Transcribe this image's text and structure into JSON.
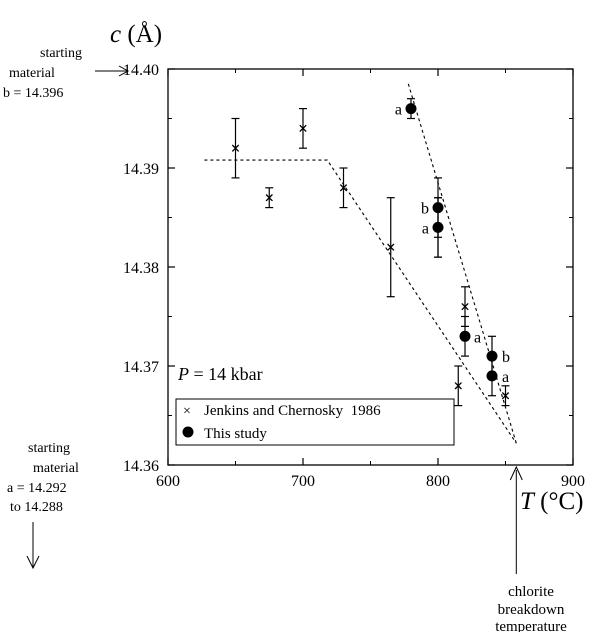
{
  "chart_data": {
    "type": "scatter",
    "xlabel": "T (°C)",
    "ylabel": "c (Å)",
    "xlim": [
      600,
      900
    ],
    "ylim": [
      14.36,
      14.4
    ],
    "x_ticks": [
      600,
      700,
      800,
      900
    ],
    "x_tick_labels": [
      "600",
      "700",
      "800",
      "900"
    ],
    "y_ticks": [
      14.36,
      14.37,
      14.38,
      14.39,
      14.4
    ],
    "y_tick_labels": [
      "14.36",
      "14.37",
      "14.38",
      "14.39",
      "14.40"
    ],
    "grid": false,
    "legend_position": "bottom-left",
    "series": [
      {
        "name": "Jenkins and Chernosky  1986",
        "marker": "cross",
        "points": [
          {
            "x": 650,
            "y": 14.392,
            "yerr": 0.003
          },
          {
            "x": 675,
            "y": 14.387,
            "yerr": 0.001
          },
          {
            "x": 700,
            "y": 14.394,
            "yerr": 0.002
          },
          {
            "x": 730,
            "y": 14.388,
            "yerr": 0.002
          },
          {
            "x": 765,
            "y": 14.382,
            "yerr": 0.005
          },
          {
            "x": 800,
            "y": 14.384,
            "yerr": 0.003
          },
          {
            "x": 815,
            "y": 14.368,
            "yerr": 0.002
          },
          {
            "x": 820,
            "y": 14.376,
            "yerr": 0.002
          },
          {
            "x": 850,
            "y": 14.367,
            "yerr": 0.001
          }
        ]
      },
      {
        "name": "This study",
        "marker": "filled-circle",
        "points": [
          {
            "x": 780,
            "y": 14.396,
            "yerr": 0.001,
            "label": "a"
          },
          {
            "x": 800,
            "y": 14.386,
            "yerr": 0.003,
            "label": "b"
          },
          {
            "x": 800,
            "y": 14.384,
            "yerr": 0.003,
            "label": "a"
          },
          {
            "x": 820,
            "y": 14.373,
            "yerr": 0.002,
            "label": "a"
          },
          {
            "x": 840,
            "y": 14.371,
            "yerr": 0.002,
            "label": "b"
          },
          {
            "x": 840,
            "y": 14.369,
            "yerr": 0.002,
            "label": "a"
          }
        ]
      }
    ],
    "trend_lines": [
      {
        "style": "dashed",
        "points": [
          [
            627,
            14.3908
          ],
          [
            718,
            14.3908
          ],
          [
            858,
            14.3622
          ]
        ]
      },
      {
        "style": "dashed",
        "points": [
          [
            778,
            14.3985
          ],
          [
            858,
            14.3622
          ]
        ]
      }
    ],
    "annotations": {
      "pressure_prefix": "P",
      "pressure_value": "= 14 kbar",
      "starting_b": [
        "starting",
        "material",
        "b = 14.396"
      ],
      "starting_a": [
        "starting",
        "material",
        "a = 14.292",
        "to 14.288"
      ],
      "chlorite": [
        "chlorite",
        "breakdown",
        "temperature"
      ],
      "chlorite_temperature": 858
    }
  }
}
